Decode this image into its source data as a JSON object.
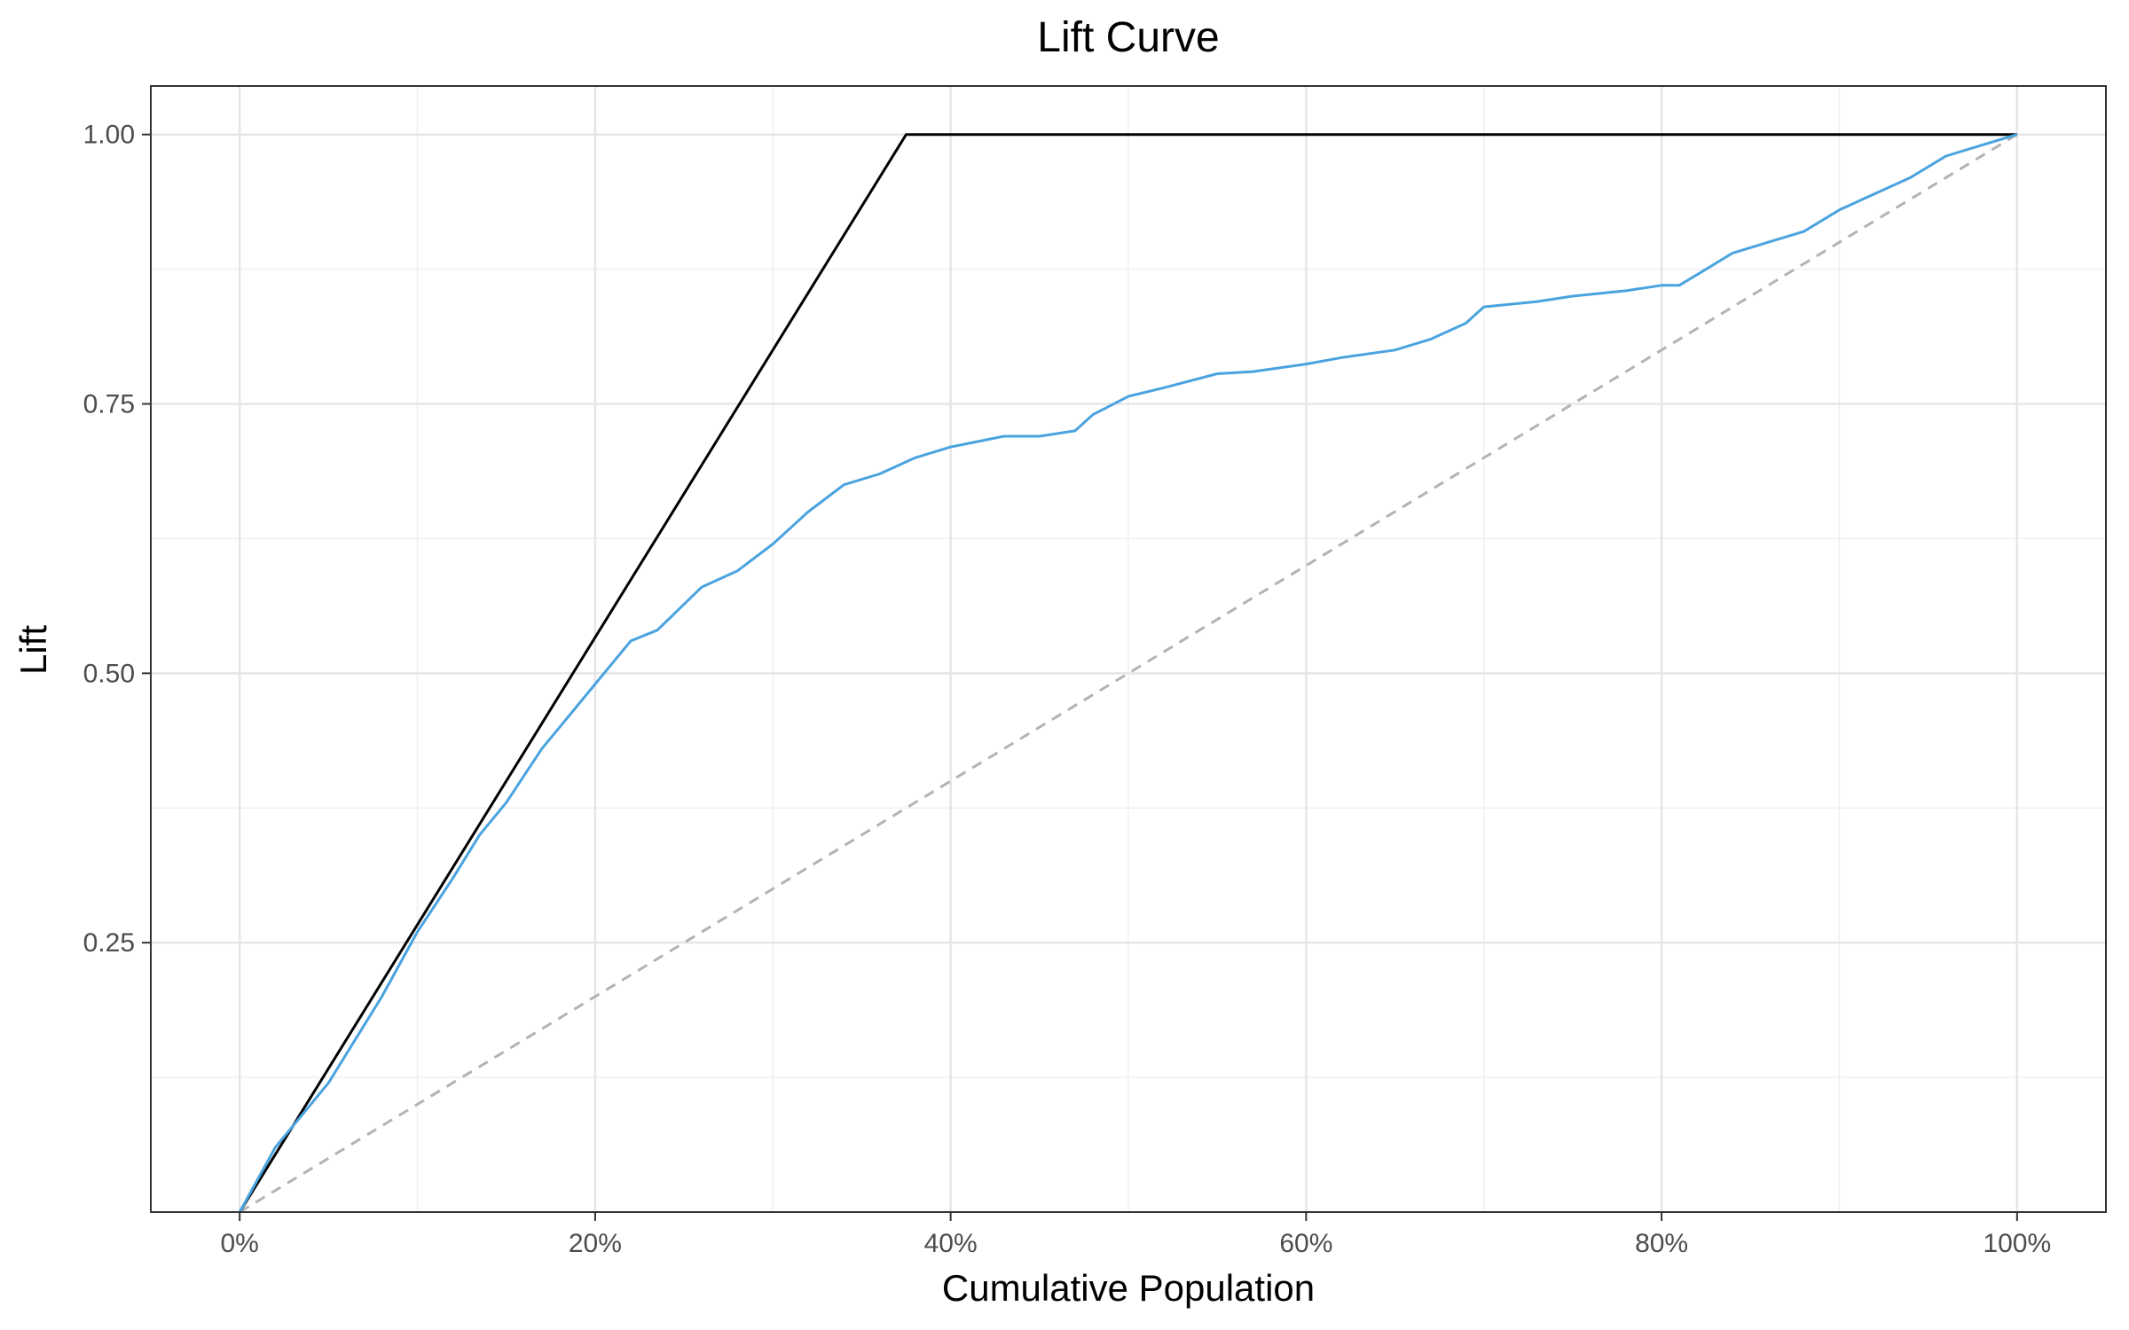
{
  "chart_data": {
    "type": "line",
    "title": "Lift Curve",
    "xlabel": "Cumulative Population",
    "ylabel": "Lift",
    "xlim": [
      -0.05,
      1.05
    ],
    "ylim": [
      0.0,
      1.045
    ],
    "x_ticks": [
      0,
      0.2,
      0.4,
      0.6,
      0.8,
      1.0
    ],
    "x_tick_labels": [
      "0%",
      "20%",
      "40%",
      "60%",
      "80%",
      "100%"
    ],
    "y_ticks": [
      0.25,
      0.5,
      0.75,
      1.0
    ],
    "y_tick_labels": [
      "0.25",
      "0.50",
      "0.75",
      "1.00"
    ],
    "grid": true,
    "legend": "none",
    "colors": {
      "model": "#4aa3df",
      "perfect": "#000000",
      "random": "#b3b3b3"
    },
    "series": [
      {
        "key": "perfect",
        "style": "solid",
        "x": [
          0,
          0.375,
          1.0
        ],
        "y": [
          0,
          1.0,
          1.0
        ]
      },
      {
        "key": "random",
        "style": "dashed",
        "x": [
          0,
          1.0
        ],
        "y": [
          0,
          1.0
        ]
      },
      {
        "key": "model",
        "style": "solid",
        "x": [
          0,
          0.02,
          0.05,
          0.08,
          0.1,
          0.12,
          0.135,
          0.15,
          0.17,
          0.185,
          0.2,
          0.22,
          0.235,
          0.26,
          0.28,
          0.3,
          0.32,
          0.34,
          0.36,
          0.38,
          0.4,
          0.43,
          0.45,
          0.47,
          0.48,
          0.5,
          0.52,
          0.55,
          0.57,
          0.6,
          0.62,
          0.65,
          0.67,
          0.69,
          0.7,
          0.73,
          0.75,
          0.78,
          0.8,
          0.81,
          0.82,
          0.84,
          0.86,
          0.88,
          0.9,
          0.92,
          0.94,
          0.96,
          0.98,
          1.0
        ],
        "y": [
          0,
          0.06,
          0.12,
          0.2,
          0.26,
          0.31,
          0.35,
          0.38,
          0.43,
          0.46,
          0.49,
          0.53,
          0.54,
          0.58,
          0.595,
          0.62,
          0.65,
          0.675,
          0.685,
          0.7,
          0.71,
          0.72,
          0.72,
          0.725,
          0.74,
          0.757,
          0.765,
          0.778,
          0.78,
          0.787,
          0.793,
          0.8,
          0.81,
          0.825,
          0.84,
          0.845,
          0.85,
          0.855,
          0.86,
          0.86,
          0.87,
          0.89,
          0.9,
          0.91,
          0.93,
          0.945,
          0.96,
          0.98,
          0.99,
          1.0
        ]
      }
    ]
  }
}
